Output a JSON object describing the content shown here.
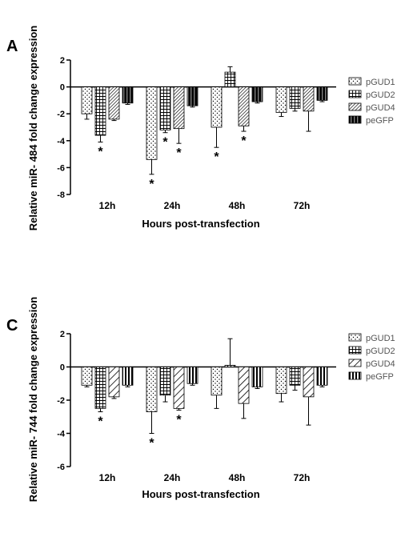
{
  "figure": {
    "panels": [
      {
        "letter": "A",
        "ylabel": "Relative miR- 484 fold change expression",
        "xlabel": "Hours post-transfection"
      },
      {
        "letter": "C",
        "ylabel": "Relative miR- 744 fold change expression",
        "xlabel": "Hours post-transfection"
      }
    ]
  },
  "chart_data": [
    {
      "type": "bar",
      "title": "",
      "xlabel": "Hours post-transfection",
      "ylabel": "Relative miR- 484 fold change expression",
      "categories": [
        "12h",
        "24h",
        "48h",
        "72h"
      ],
      "ylim": [
        -8,
        2
      ],
      "yticks": [
        2,
        0,
        -2,
        -4,
        -6,
        -8
      ],
      "legend_position": "right",
      "series": [
        {
          "name": "pGUD1",
          "pattern": "dots",
          "values": [
            -2.0,
            -5.4,
            -3.0,
            -1.9
          ],
          "errors": [
            0.4,
            1.1,
            1.5,
            0.3
          ],
          "significant": [
            false,
            true,
            true,
            false
          ]
        },
        {
          "name": "pGUD2",
          "pattern": "grid",
          "values": [
            -3.6,
            -3.2,
            1.1,
            -1.6
          ],
          "errors": [
            0.5,
            0.2,
            0.4,
            0.2
          ],
          "significant": [
            true,
            true,
            false,
            false
          ]
        },
        {
          "name": "pGUD4",
          "pattern": "hatch",
          "values": [
            -2.4,
            -3.1,
            -2.9,
            -1.8
          ],
          "errors": [
            0.1,
            1.1,
            0.4,
            1.5
          ],
          "significant": [
            false,
            true,
            true,
            false
          ]
        },
        {
          "name": "peGFP",
          "pattern": "solid",
          "values": [
            -1.2,
            -1.4,
            -1.1,
            -1.0
          ],
          "errors": [
            0.1,
            0.1,
            0.1,
            0.1
          ],
          "significant": [
            false,
            false,
            false,
            false
          ]
        }
      ]
    },
    {
      "type": "bar",
      "title": "",
      "xlabel": "Hours post-transfection",
      "ylabel": "Relative miR- 744 fold change expression",
      "categories": [
        "12h",
        "24h",
        "48h",
        "72h"
      ],
      "ylim": [
        -6,
        2
      ],
      "yticks": [
        2,
        0,
        -2,
        -4,
        -6
      ],
      "legend_position": "right",
      "series": [
        {
          "name": "pGUD1",
          "pattern": "dots",
          "values": [
            -1.1,
            -2.7,
            -1.7,
            -1.6
          ],
          "errors": [
            0.1,
            1.3,
            0.8,
            0.5
          ],
          "significant": [
            false,
            true,
            false,
            false
          ]
        },
        {
          "name": "pGUD2",
          "pattern": "grid",
          "values": [
            -2.5,
            -1.7,
            0.1,
            -1.1
          ],
          "errors": [
            0.2,
            0.4,
            1.6,
            0.3
          ],
          "significant": [
            true,
            false,
            false,
            false
          ]
        },
        {
          "name": "pGUD4",
          "pattern": "diag",
          "values": [
            -1.8,
            -2.5,
            -2.2,
            -1.8
          ],
          "errors": [
            0.1,
            0.1,
            0.9,
            1.7
          ],
          "significant": [
            false,
            true,
            false,
            false
          ]
        },
        {
          "name": "peGFP",
          "pattern": "vstripe",
          "values": [
            -1.1,
            -1.0,
            -1.2,
            -1.1
          ],
          "errors": [
            0.1,
            0.1,
            0.1,
            0.1
          ],
          "significant": [
            false,
            false,
            false,
            false
          ]
        }
      ]
    }
  ]
}
